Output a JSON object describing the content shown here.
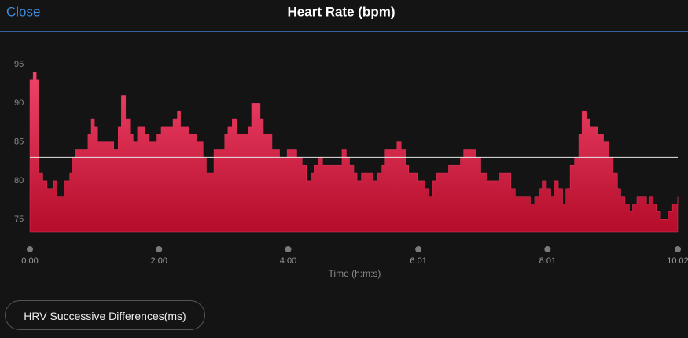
{
  "header": {
    "close": "Close"
  },
  "chart_data": {
    "type": "area",
    "title": "Heart Rate (bpm)",
    "x_label": "Time (h:m:s)",
    "x": [
      0,
      3,
      6,
      8,
      12,
      16,
      22,
      25,
      29,
      32,
      37,
      39,
      42,
      51,
      54,
      57,
      60,
      63,
      74,
      78,
      82,
      85,
      89,
      93,
      96,
      100,
      107,
      111,
      118,
      122,
      129,
      133,
      137,
      140,
      148,
      155,
      161,
      164,
      168,
      171,
      177,
      181,
      184,
      188,
      192,
      199,
      203,
      206,
      210,
      214,
      217,
      225,
      232,
      239,
      243,
      248,
      253,
      257,
      261,
      264,
      268,
      272,
      287,
      290,
      294,
      297,
      301,
      304,
      308,
      314,
      319,
      323,
      327,
      330,
      337,
      341,
      345,
      349,
      352,
      360,
      367,
      371,
      374,
      378,
      385,
      389,
      396,
      400,
      403,
      411,
      414,
      419,
      425,
      432,
      436,
      443,
      447,
      451,
      462,
      465,
      469,
      473,
      476,
      480,
      484,
      487,
      491,
      495,
      498,
      502,
      506,
      510,
      513,
      517,
      520,
      528,
      533,
      538,
      542,
      546,
      549,
      553,
      557,
      560,
      564,
      570,
      573,
      576,
      579,
      582,
      586,
      589,
      593,
      597,
      602
    ],
    "series": [
      {
        "name": "Heart Rate",
        "color": "#e8345a",
        "values": [
          93,
          94,
          93,
          81,
          80,
          79,
          80,
          78,
          78,
          80,
          81,
          83,
          84,
          84,
          86,
          88,
          87,
          85,
          85,
          84,
          87,
          91,
          88,
          86,
          85,
          87,
          86,
          85,
          86,
          87,
          87,
          88,
          89,
          87,
          86,
          85,
          83,
          81,
          81,
          84,
          84,
          86,
          87,
          88,
          86,
          86,
          87,
          90,
          90,
          88,
          86,
          84,
          83,
          84,
          84,
          83,
          82,
          80,
          81,
          82,
          83,
          82,
          82,
          84,
          83,
          82,
          81,
          80,
          81,
          81,
          80,
          81,
          82,
          84,
          84,
          85,
          84,
          82,
          81,
          80,
          79,
          78,
          80,
          81,
          81,
          82,
          82,
          83,
          84,
          84,
          83,
          81,
          80,
          80,
          81,
          81,
          79,
          78,
          78,
          77,
          78,
          79,
          80,
          79,
          78,
          80,
          79,
          77,
          79,
          82,
          83,
          86,
          89,
          88,
          87,
          86,
          85,
          83,
          81,
          79,
          78,
          77,
          76,
          77,
          78,
          78,
          77,
          78,
          77,
          76,
          75,
          75,
          76,
          77,
          78
        ]
      }
    ],
    "average_line": 83,
    "xlim": [
      0,
      602
    ],
    "xticks": [
      {
        "value": 0,
        "label": "0:00"
      },
      {
        "value": 120,
        "label": "2:00"
      },
      {
        "value": 240,
        "label": "4:00"
      },
      {
        "value": 361,
        "label": "6:01"
      },
      {
        "value": 481,
        "label": "8:01"
      },
      {
        "value": 602,
        "label": "10:02"
      }
    ],
    "ylim": [
      73.4,
      97
    ],
    "yticks": [
      75,
      80,
      85,
      90,
      95
    ],
    "grid": false
  },
  "button": {
    "label": "HRV Successive Differences(ms)"
  }
}
